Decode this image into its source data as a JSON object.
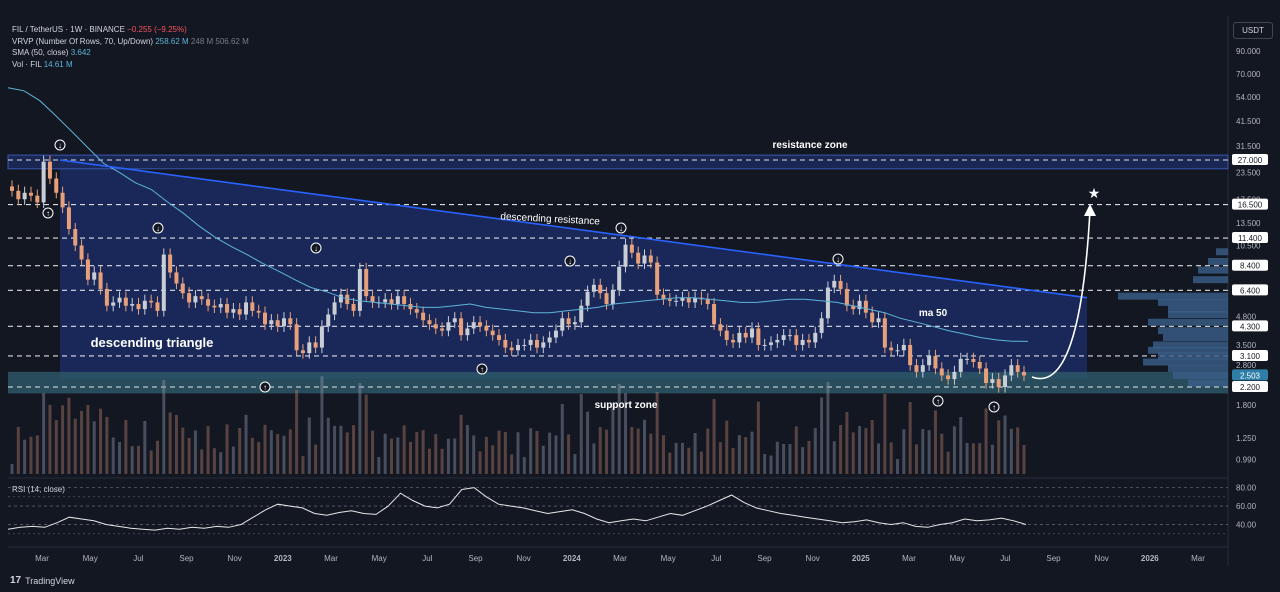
{
  "header": {
    "symbol_line": "FIL / TetherUS · 1W · BINANCE",
    "change": "−0.255 (−9.25%)",
    "vrvp_label": "VRVP (Number Of Rows, 70, Up/Down)",
    "vrvp_v1": "258.62 M",
    "vrvp_v2": "248 M",
    "vrvp_v3": "506.62 M",
    "sma_label": "SMA (50, close)",
    "sma_value": "3.642",
    "vol_label": "Vol · FIL",
    "vol_value": "14.61 M"
  },
  "currency": "USDT",
  "rsi_label": "RSI (14, close)",
  "branding": "TradingView",
  "colors": {
    "background": "#131722",
    "up": "#c8cdd6",
    "down": "#e8a07a",
    "sma": "#5fb4d8",
    "resistance_line": "#2962ff",
    "triangle_fill": "#1c2f6b",
    "support_fill": "#2e5a6a",
    "volume_profile": "#3b5f8a",
    "rsi_line": "#e8e8e8"
  },
  "chart_data": [
    {
      "type": "candlestick",
      "scale": "log",
      "price_axis_ticks": [
        "90.000",
        "70.000",
        "54.000",
        "41.500",
        "31.500",
        "23.500",
        "17.500",
        "13.500",
        "10.500",
        "8.400",
        "6.400",
        "4.800",
        "3.500",
        "2.800",
        "2.200",
        "1.800",
        "1.250",
        "0.990"
      ],
      "price_axis_labels": [
        "27.000",
        "16.500",
        "11.400",
        "8.400",
        "6.400",
        "4.300",
        "3.100",
        "2.503",
        "2.200"
      ],
      "time_axis_ticks": [
        "Mar",
        "May",
        "Jul",
        "Sep",
        "Nov",
        "2023",
        "Mar",
        "May",
        "Jul",
        "Sep",
        "Nov",
        "2024",
        "Mar",
        "May",
        "Jul",
        "Sep",
        "Nov",
        "2025",
        "Mar",
        "May",
        "Jul",
        "Sep",
        "Nov",
        "2026",
        "Mar"
      ],
      "horizontal_levels": [
        27.0,
        16.5,
        11.4,
        8.4,
        6.4,
        4.3,
        3.1,
        2.2
      ],
      "annotations": [
        "resistance zone",
        "descending resistance",
        "ma 50",
        "descending triangle",
        "support zone"
      ],
      "resistance_zone": [
        24.5,
        28.5
      ],
      "support_zone": [
        2.05,
        2.6
      ],
      "close_prices": [
        19.2,
        17.5,
        18.8,
        18.2,
        16.9,
        26.5,
        22.0,
        18.8,
        16.0,
        12.6,
        10.5,
        9.0,
        7.2,
        7.8,
        6.5,
        5.4,
        5.6,
        5.9,
        5.4,
        5.5,
        5.2,
        5.7,
        5.6,
        5.1,
        9.5,
        7.8,
        6.9,
        6.2,
        5.6,
        6.0,
        5.8,
        5.4,
        5.3,
        5.5,
        5.0,
        5.2,
        4.9,
        5.6,
        5.1,
        5.0,
        4.4,
        4.6,
        4.3,
        4.7,
        4.4,
        3.3,
        3.2,
        3.6,
        3.4,
        4.3,
        4.9,
        5.6,
        6.1,
        5.5,
        5.1,
        8.1,
        6.0,
        5.6,
        5.6,
        5.8,
        5.5,
        6.0,
        5.5,
        5.2,
        5.0,
        4.6,
        4.4,
        4.2,
        4.1,
        4.5,
        4.7,
        3.9,
        4.2,
        4.5,
        4.3,
        4.1,
        3.9,
        3.7,
        3.4,
        3.3,
        3.5,
        3.5,
        3.7,
        3.4,
        3.6,
        3.8,
        4.1,
        4.7,
        4.4,
        4.5,
        5.4,
        6.3,
        6.8,
        6.2,
        5.5,
        6.4,
        8.3,
        10.6,
        9.7,
        8.6,
        9.4,
        8.7,
        6.1,
        5.8,
        5.7,
        5.7,
        5.9,
        5.6,
        5.9,
        5.8,
        5.5,
        4.4,
        4.1,
        3.7,
        3.6,
        4.0,
        3.8,
        4.2,
        3.5,
        3.5,
        3.6,
        3.7,
        3.9,
        3.9,
        3.5,
        3.7,
        3.6,
        4.0,
        4.7,
        6.6,
        7.1,
        6.5,
        5.4,
        5.2,
        5.7,
        5.0,
        4.5,
        4.7,
        3.4,
        3.3,
        3.3,
        3.5,
        2.8,
        2.6,
        2.8,
        3.1,
        2.7,
        2.5,
        2.4,
        2.6,
        3.0,
        3.0,
        2.9,
        2.7,
        2.3,
        2.4,
        2.2,
        2.5,
        2.8,
        2.6,
        2.5
      ],
      "sma50": [
        60,
        58,
        52,
        44,
        37,
        31,
        26,
        23.5,
        21,
        19.5,
        17,
        15,
        13,
        11.5,
        10.4,
        9.5,
        8.6,
        7.9,
        7.2,
        6.6,
        6.3,
        5.9,
        5.7,
        5.6,
        5.5,
        5.4,
        5.3,
        5.3,
        5.4,
        5.5,
        5.3,
        5.2,
        5.1,
        5.0,
        5.0,
        5.1,
        5.2,
        5.3,
        5.5,
        5.6,
        5.7,
        5.8,
        5.9,
        5.9,
        5.8,
        5.7,
        5.6,
        5.6,
        5.7,
        5.8,
        5.8,
        5.7,
        5.6,
        5.4,
        5.2,
        5.0,
        4.7,
        4.5,
        4.3,
        4.1,
        3.95,
        3.8,
        3.7,
        3.65,
        3.64
      ]
    },
    {
      "type": "line",
      "name": "RSI (14, close)",
      "y_ticks": [
        80.0,
        60.0,
        40.0
      ],
      "values": [
        35,
        37,
        38,
        37,
        42,
        48,
        46,
        44,
        40,
        38,
        36,
        35,
        34,
        36,
        35,
        37,
        36,
        38,
        37,
        40,
        48,
        56,
        62,
        60,
        58,
        52,
        50,
        53,
        55,
        52,
        51,
        60,
        74,
        66,
        60,
        58,
        62,
        78,
        80,
        70,
        62,
        60,
        58,
        55,
        52,
        54,
        56,
        52,
        46,
        42,
        44,
        46,
        44,
        48,
        52,
        50,
        55,
        60,
        66,
        72,
        64,
        58,
        55,
        52,
        50,
        48,
        46,
        44,
        42,
        43,
        45,
        42,
        40,
        42,
        38,
        37,
        40,
        42,
        46,
        44,
        45,
        47,
        44,
        40
      ]
    }
  ]
}
